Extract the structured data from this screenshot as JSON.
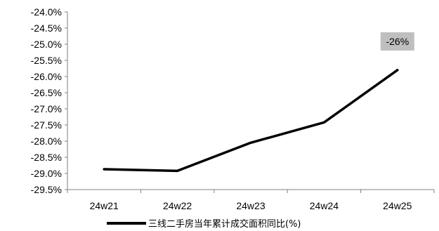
{
  "chart_data": {
    "type": "line",
    "categories": [
      "24w21",
      "24w22",
      "24w23",
      "24w24",
      "24w25"
    ],
    "series": [
      {
        "name": "三线二手房当年累计成交面积同比(%)",
        "values": [
          -28.87,
          -28.92,
          -28.05,
          -27.42,
          -25.8
        ],
        "color": "#000000"
      }
    ],
    "ylim": [
      -29.5,
      -24.0
    ],
    "yticks": [
      "-24.0%",
      "-24.5%",
      "-25.0%",
      "-25.5%",
      "-26.0%",
      "-26.5%",
      "-27.0%",
      "-27.5%",
      "-28.0%",
      "-28.5%",
      "-29.0%",
      "-29.5%"
    ],
    "ytick_values": [
      -24.0,
      -24.5,
      -25.0,
      -25.5,
      -26.0,
      -26.5,
      -27.0,
      -27.5,
      -28.0,
      -28.5,
      -29.0,
      -29.5
    ],
    "grid": false,
    "legend_position": "bottom",
    "annotation": {
      "text": "-26%",
      "category_index": 4,
      "background": "#bfbfbf"
    }
  }
}
